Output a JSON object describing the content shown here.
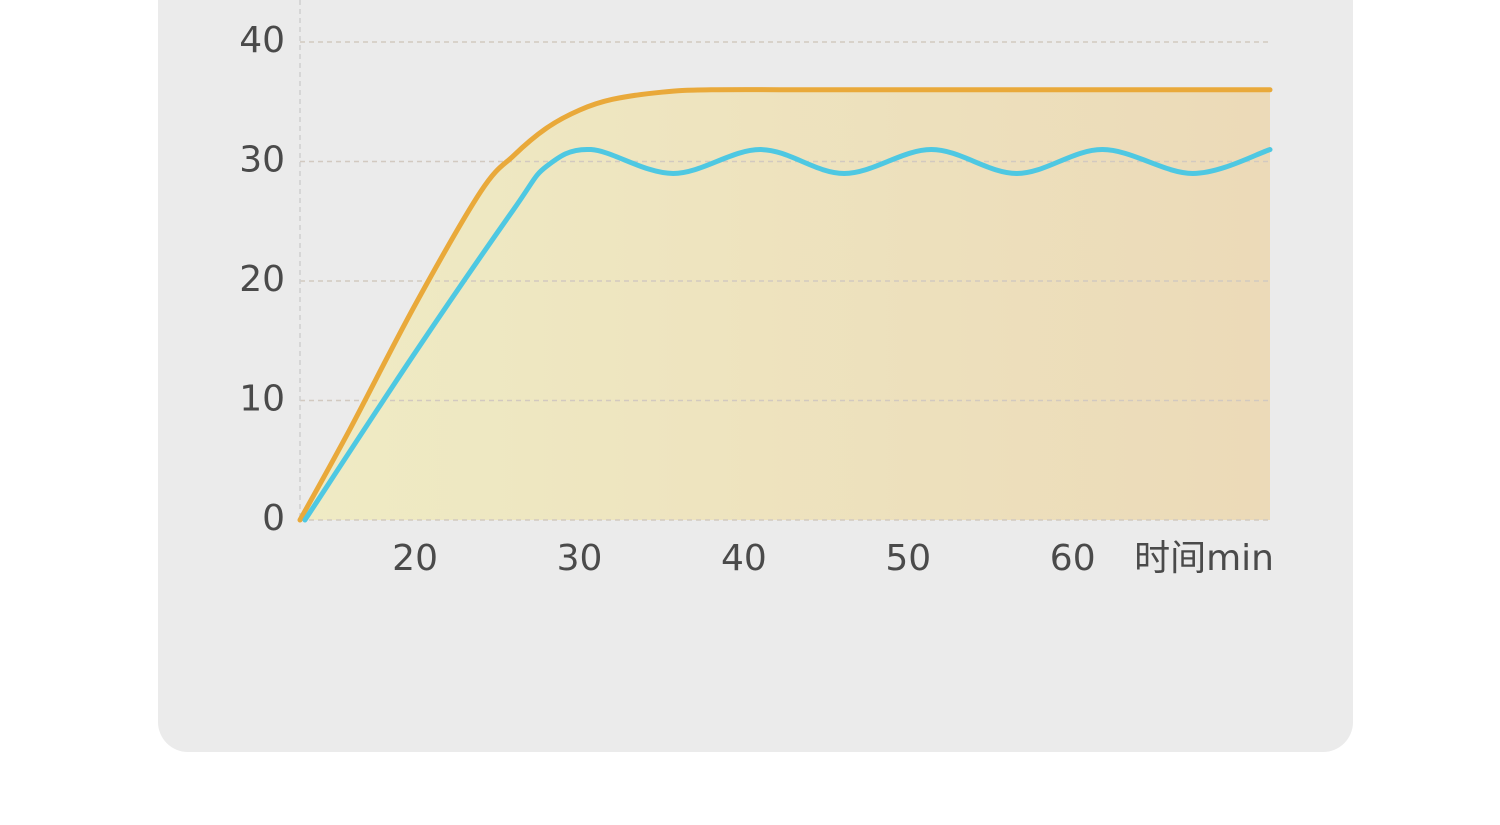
{
  "chart_data": {
    "type": "line",
    "x_label": "时间min",
    "xlim": [
      13,
      72
    ],
    "xticks": [
      20,
      30,
      40,
      50,
      60
    ],
    "ylim": [
      0,
      40
    ],
    "yticks": [
      0,
      10,
      20,
      30,
      40
    ],
    "grid": true,
    "series": [
      {
        "color": "#e9a93a",
        "x": [
          13,
          16,
          20,
          24,
          26,
          28,
          30,
          32,
          35,
          38,
          45,
          55,
          65,
          72
        ],
        "values": [
          0,
          7.5,
          18,
          27.5,
          30.5,
          32.8,
          34.3,
          35.2,
          35.8,
          36,
          36,
          36,
          36,
          36
        ]
      },
      {
        "color": "#4ec8e2",
        "x": [
          13.3,
          20,
          26,
          28,
          30.7,
          35.7,
          41,
          46.1,
          51.4,
          56.6,
          61.8,
          67.3,
          72
        ],
        "values": [
          0,
          14,
          26,
          29.6,
          31,
          29,
          31,
          29,
          31,
          29,
          31,
          29,
          31
        ]
      }
    ]
  }
}
